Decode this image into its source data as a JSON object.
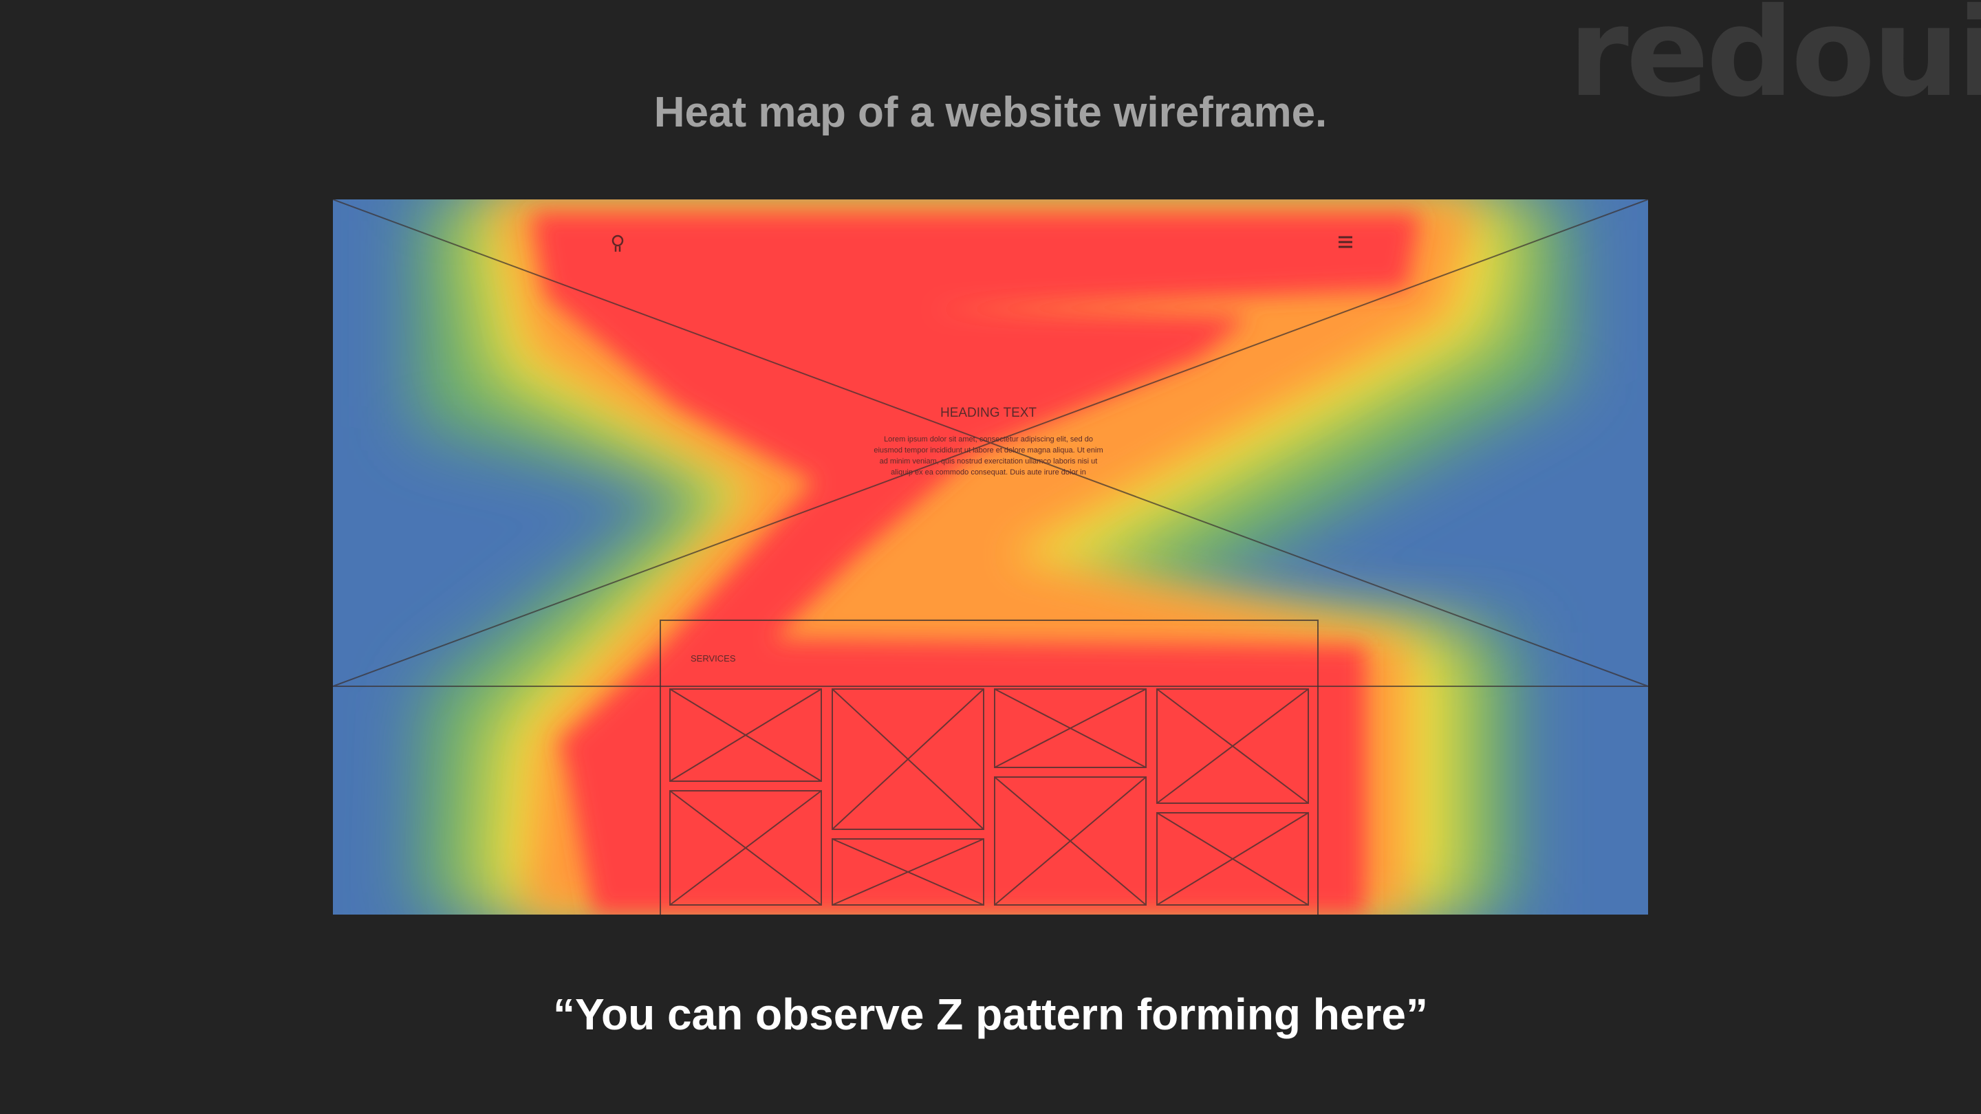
{
  "brand": {
    "logo_text": "redoui"
  },
  "title": "Heat map of a website wireframe.",
  "wireframe": {
    "heading": "HEADING TEXT",
    "body_lines": [
      "Lorem ipsum dolor sit amet, consectetur adipiscing elit, sed do",
      "eiusmod tempor incididunt ut labore et dolore magna aliqua. Ut enim",
      "ad minim veniam, quis nostrud exercitation ullamco laboris nisi ut",
      "aliquip ex ea commodo consequat. Duis aute irure dolor in"
    ],
    "services_label": "SERVICES",
    "nav_icons": [
      "bulb-icon",
      "hamburger-menu-icon"
    ]
  },
  "caption": "“You can observe Z pattern forming here”",
  "colors": {
    "background": "#232323",
    "cold": "#4a76b4",
    "warm": "#f2e03a",
    "hot": "#ff4040",
    "title": "#a3a3a3",
    "caption": "#ffffff"
  }
}
